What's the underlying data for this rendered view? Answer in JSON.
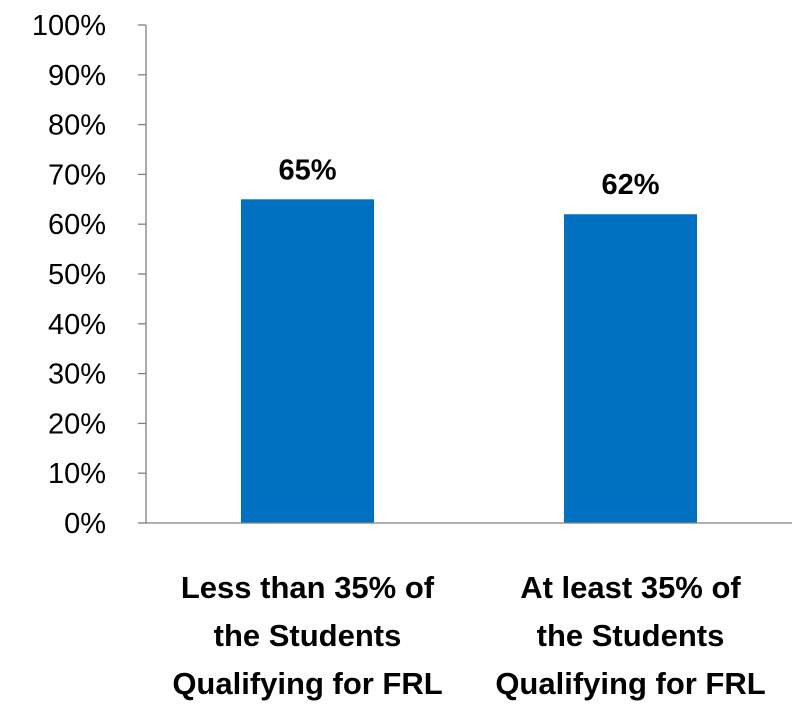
{
  "chart_data": {
    "type": "bar",
    "categories": [
      [
        "Less than 35% of",
        "the Students",
        "Qualifying for FRL"
      ],
      [
        "At least 35% of",
        "the Students",
        "Qualifying for FRL"
      ]
    ],
    "values": [
      65,
      62
    ],
    "data_labels": [
      "65%",
      "62%"
    ],
    "ylim": [
      0,
      100
    ],
    "yticks": [
      0,
      10,
      20,
      30,
      40,
      50,
      60,
      70,
      80,
      90,
      100
    ],
    "ytick_labels": [
      "0%",
      "10%",
      "20%",
      "30%",
      "40%",
      "50%",
      "60%",
      "70%",
      "80%",
      "90%",
      "100%"
    ],
    "grid": false,
    "legend": "none",
    "bar_color": "#0070C0",
    "axis_color": "#808080"
  }
}
